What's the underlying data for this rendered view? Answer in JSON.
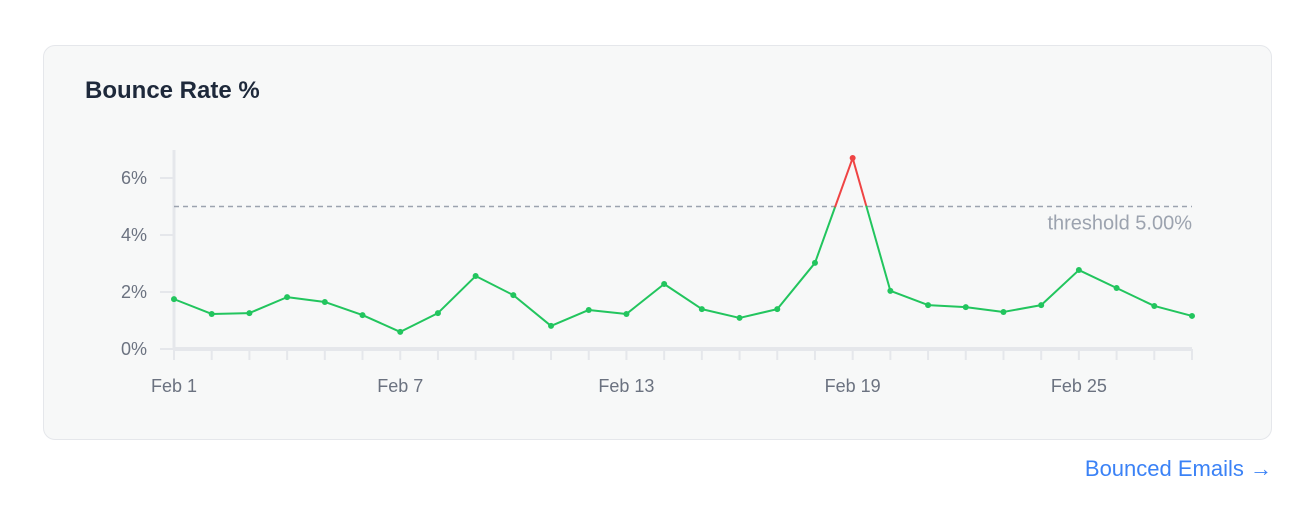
{
  "card": {
    "title": "Bounce Rate %"
  },
  "footer_link": {
    "label": "Bounced Emails",
    "arrow": "→"
  },
  "colors": {
    "line": "#22c55e",
    "above_threshold": "#ef4444",
    "threshold": "#9ca3af",
    "link": "#3b82f6"
  },
  "chart_data": {
    "type": "line",
    "title": "Bounce Rate %",
    "x": [
      "Feb 1",
      "Feb 2",
      "Feb 3",
      "Feb 4",
      "Feb 5",
      "Feb 6",
      "Feb 7",
      "Feb 8",
      "Feb 9",
      "Feb 10",
      "Feb 11",
      "Feb 12",
      "Feb 13",
      "Feb 14",
      "Feb 15",
      "Feb 16",
      "Feb 17",
      "Feb 18",
      "Feb 19",
      "Feb 20",
      "Feb 21",
      "Feb 22",
      "Feb 23",
      "Feb 24",
      "Feb 25",
      "Feb 26",
      "Feb 27",
      "Feb 28"
    ],
    "values": [
      1.75,
      1.23,
      1.26,
      1.82,
      1.65,
      1.19,
      0.6,
      1.26,
      2.56,
      1.89,
      0.81,
      1.37,
      1.23,
      2.28,
      1.4,
      1.09,
      1.4,
      3.02,
      6.7,
      2.04,
      1.54,
      1.47,
      1.3,
      1.54,
      2.77,
      2.14,
      1.51,
      1.16
    ],
    "x_tick_labels": [
      "Feb 1",
      "Feb 7",
      "Feb 13",
      "Feb 19",
      "Feb 25"
    ],
    "y_tick_labels": [
      "0%",
      "2%",
      "4%",
      "6%"
    ],
    "y_ticks": [
      0,
      2,
      4,
      6
    ],
    "ylim": [
      0,
      7
    ],
    "threshold": {
      "value": 5.0,
      "label": "threshold 5.00%"
    },
    "grid": false,
    "legend": "none"
  }
}
